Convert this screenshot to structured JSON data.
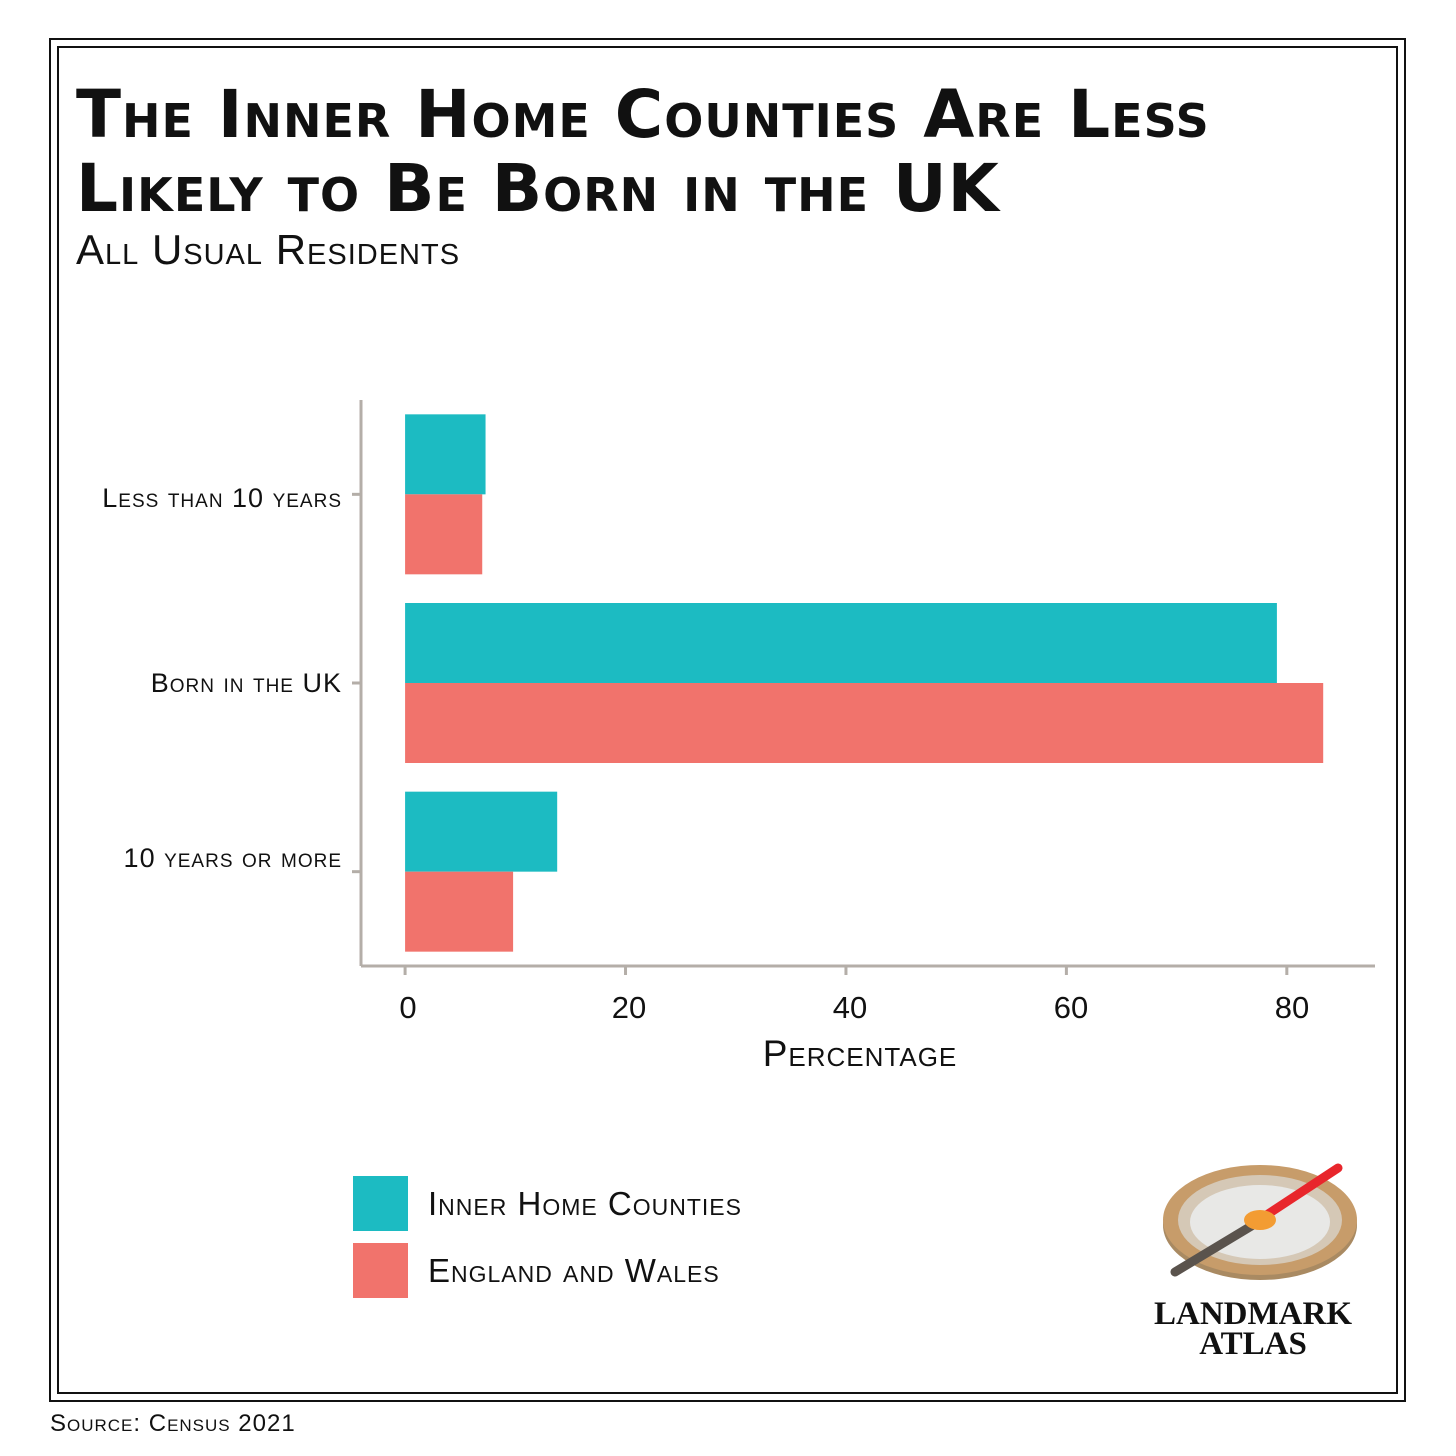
{
  "title_line1": "The Inner Home Counties Are Less",
  "title_line2": "Likely to Be Born in the UK",
  "subtitle": "All Usual Residents",
  "source": "Source: Census 2021",
  "logo": {
    "line1": "LANDMARK",
    "line2": "ATLAS",
    "icon": "compass-icon"
  },
  "colors": {
    "inner": "#1cbbc2",
    "england": "#f1736c",
    "axis": "#b4aea8"
  },
  "chart_data": {
    "type": "bar",
    "orientation": "horizontal",
    "categories": [
      "Less than 10 years",
      "Born in the UK",
      "10 years or more"
    ],
    "series": [
      {
        "name": "Inner Home Counties",
        "values": [
          7.3,
          79.1,
          13.8
        ]
      },
      {
        "name": "England and Wales",
        "values": [
          7.0,
          83.3,
          9.8
        ]
      }
    ],
    "xlabel": "Percentage",
    "ylabel": "",
    "xticks": [
      "0",
      "20",
      "40",
      "60",
      "80"
    ],
    "xlim": [
      -4,
      88
    ],
    "grid": false,
    "legend_position": "bottom-left"
  }
}
